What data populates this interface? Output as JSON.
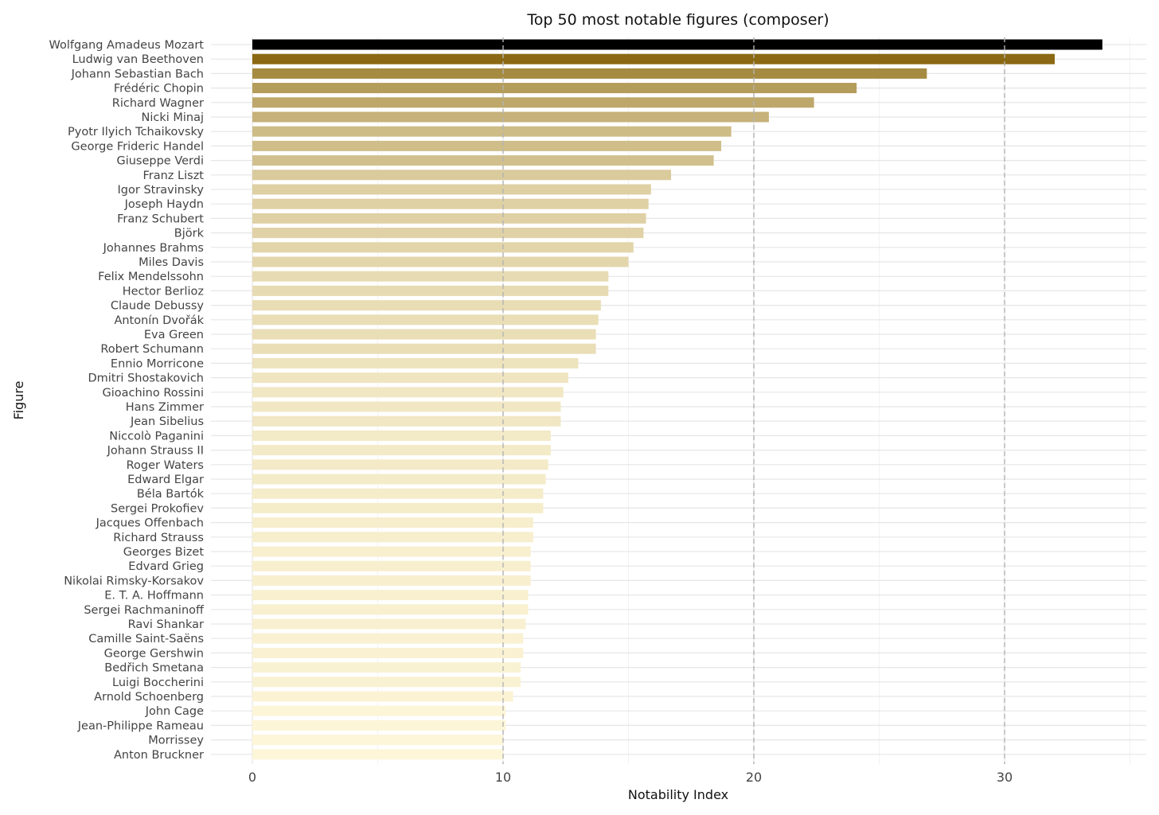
{
  "chart_data": {
    "type": "bar",
    "orientation": "horizontal",
    "title": "Top 50 most notable figures (composer)",
    "xlabel": "Notability Index",
    "ylabel": "Figure",
    "xlim": [
      0,
      35
    ],
    "xticks": [
      0,
      10,
      20,
      30
    ],
    "reference_lines": [
      10,
      20,
      30
    ],
    "grid": true,
    "color_low": "#fdf6d8",
    "color_high": "#8b6914",
    "color_top": "#000000",
    "categories": [
      "Wolfgang Amadeus Mozart",
      "Ludwig van Beethoven",
      "Johann Sebastian Bach",
      "Frédéric Chopin",
      "Richard Wagner",
      "Nicki Minaj",
      "Pyotr Ilyich Tchaikovsky",
      "George Frideric Handel",
      "Giuseppe Verdi",
      "Franz Liszt",
      "Igor Stravinsky",
      "Joseph Haydn",
      "Franz Schubert",
      "Björk",
      "Johannes Brahms",
      "Miles Davis",
      "Felix Mendelssohn",
      "Hector Berlioz",
      "Claude Debussy",
      "Antonín Dvořák",
      "Eva Green",
      "Robert Schumann",
      "Ennio Morricone",
      "Dmitri Shostakovich",
      "Gioachino Rossini",
      "Hans Zimmer",
      "Jean Sibelius",
      "Niccolò Paganini",
      "Johann Strauss II",
      "Roger Waters",
      "Edward Elgar",
      "Béla Bartók",
      "Sergei Prokofiev",
      "Jacques Offenbach",
      "Richard Strauss",
      "Georges Bizet",
      "Edvard Grieg",
      "Nikolai Rimsky-Korsakov",
      "E. T. A. Hoffmann",
      "Sergei Rachmaninoff",
      "Ravi Shankar",
      "Camille Saint-Saëns",
      "George Gershwin",
      "Bedřich Smetana",
      "Luigi Boccherini",
      "Arnold Schoenberg",
      "John Cage",
      "Jean-Philippe Rameau",
      "Morrissey",
      "Anton Bruckner"
    ],
    "values": [
      33.9,
      32.0,
      26.9,
      24.1,
      22.4,
      20.6,
      19.1,
      18.7,
      18.4,
      16.7,
      15.9,
      15.8,
      15.7,
      15.6,
      15.2,
      15.0,
      14.2,
      14.2,
      13.9,
      13.8,
      13.7,
      13.7,
      13.0,
      12.6,
      12.4,
      12.3,
      12.3,
      11.9,
      11.9,
      11.8,
      11.7,
      11.6,
      11.6,
      11.2,
      11.2,
      11.1,
      11.1,
      11.1,
      11.0,
      11.0,
      10.9,
      10.8,
      10.8,
      10.7,
      10.7,
      10.4,
      10.1,
      10.1,
      10.0,
      10.0
    ]
  }
}
